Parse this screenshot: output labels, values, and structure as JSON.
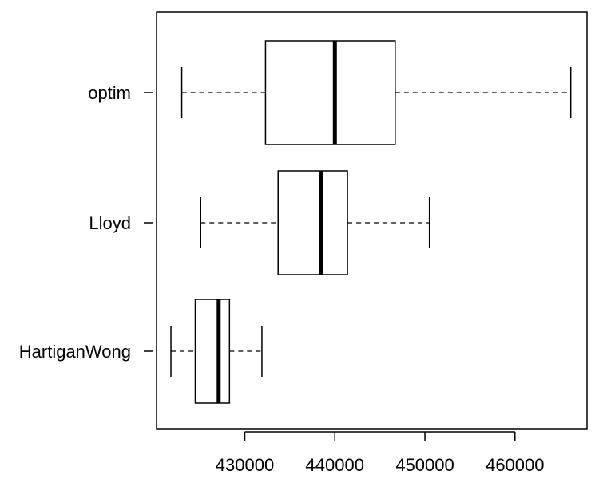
{
  "chart_data": {
    "type": "box",
    "orientation": "horizontal",
    "categories": [
      "optim",
      "Lloyd",
      "HartiganWong"
    ],
    "series": [
      {
        "category": "optim",
        "whisker_low": 423000,
        "q1": 432300,
        "median": 440000,
        "q3": 446700,
        "whisker_high": 466200
      },
      {
        "category": "Lloyd",
        "whisker_low": 425100,
        "q1": 433700,
        "median": 438500,
        "q3": 441400,
        "whisker_high": 450500
      },
      {
        "category": "HartiganWong",
        "whisker_low": 421800,
        "q1": 424500,
        "median": 427100,
        "q3": 428300,
        "whisker_high": 431900
      }
    ],
    "xticks": [
      430000,
      440000,
      450000,
      460000
    ],
    "xtick_labels": [
      "430000",
      "440000",
      "450000",
      "460000"
    ],
    "xlim": [
      420200,
      468000
    ],
    "title": "",
    "xlabel": "",
    "ylabel": "",
    "grid": false,
    "colors": {
      "box_fill": "#ffffff",
      "line": "#000000"
    }
  }
}
